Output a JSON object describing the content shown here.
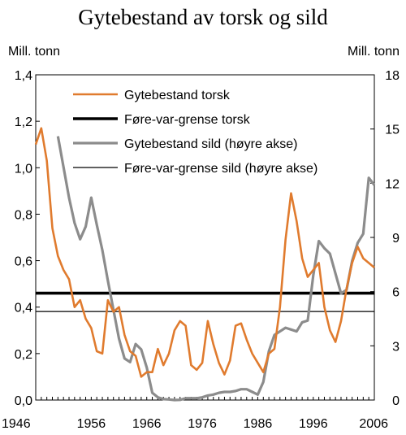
{
  "chart_data": {
    "type": "line",
    "title": "Gytebestand av torsk og sild",
    "ylabel_left": "Mill. tonn",
    "ylabel_right": "Mill. tonn",
    "xlim": [
      1946,
      2007
    ],
    "ylim_left": [
      0,
      1.4
    ],
    "ylim_right": [
      0,
      18
    ],
    "x_ticks": [
      "1946",
      "1956",
      "1966",
      "1976",
      "1986",
      "1996",
      "2006"
    ],
    "y_ticks_left": [
      "0,0",
      "0,2",
      "0,4",
      "0,6",
      "0,8",
      "1,0",
      "1,2",
      "1,4"
    ],
    "y_ticks_right": [
      "0",
      "3",
      "6",
      "9",
      "12",
      "15",
      "18"
    ],
    "grid": false,
    "legend_position": "top-right",
    "colors": {
      "torsk": "#e07b2e",
      "sild": "#8c8c8c",
      "grense_torsk": "#000000",
      "grense_sild": "#000000"
    },
    "series": [
      {
        "name": "Gytebestand torsk",
        "axis": "left",
        "x": [
          1946,
          1947,
          1948,
          1949,
          1950,
          1951,
          1952,
          1953,
          1954,
          1955,
          1956,
          1957,
          1958,
          1959,
          1960,
          1961,
          1962,
          1963,
          1964,
          1965,
          1966,
          1967,
          1968,
          1969,
          1970,
          1971,
          1972,
          1973,
          1974,
          1975,
          1976,
          1977,
          1978,
          1979,
          1980,
          1981,
          1982,
          1983,
          1984,
          1985,
          1986,
          1987,
          1988,
          1989,
          1990,
          1991,
          1992,
          1993,
          1994,
          1995,
          1996,
          1997,
          1998,
          1999,
          2000,
          2001,
          2002,
          2003,
          2004,
          2005,
          2006,
          2007
        ],
        "y": [
          1.1,
          1.17,
          1.03,
          0.74,
          0.62,
          0.56,
          0.52,
          0.4,
          0.43,
          0.35,
          0.31,
          0.21,
          0.2,
          0.43,
          0.38,
          0.4,
          0.28,
          0.21,
          0.19,
          0.1,
          0.12,
          0.12,
          0.22,
          0.15,
          0.2,
          0.3,
          0.34,
          0.32,
          0.15,
          0.13,
          0.16,
          0.34,
          0.24,
          0.16,
          0.11,
          0.17,
          0.32,
          0.33,
          0.26,
          0.2,
          0.16,
          0.12,
          0.2,
          0.22,
          0.4,
          0.69,
          0.89,
          0.77,
          0.61,
          0.53,
          0.56,
          0.59,
          0.4,
          0.3,
          0.25,
          0.34,
          0.48,
          0.59,
          0.66,
          0.61,
          0.59,
          0.57
        ]
      },
      {
        "name": "Føre-var-grense torsk",
        "axis": "left",
        "x": [
          1946,
          2007
        ],
        "y": [
          0.46,
          0.46
        ]
      },
      {
        "name": "Gytebestand sild (høyre akse)",
        "axis": "right",
        "x": [
          1950,
          1951,
          1952,
          1953,
          1954,
          1955,
          1956,
          1957,
          1958,
          1959,
          1960,
          1961,
          1962,
          1963,
          1964,
          1965,
          1966,
          1967,
          1968,
          1969,
          1970,
          1971,
          1972,
          1973,
          1974,
          1975,
          1976,
          1977,
          1978,
          1979,
          1980,
          1981,
          1982,
          1983,
          1984,
          1985,
          1986,
          1987,
          1988,
          1989,
          1990,
          1991,
          1992,
          1993,
          1994,
          1995,
          1996,
          1997,
          1998,
          1999,
          2000,
          2001,
          2002,
          2003,
          2004,
          2005,
          2006,
          2007
        ],
        "y": [
          14.6,
          12.9,
          11.2,
          9.8,
          8.9,
          9.6,
          11.2,
          9.7,
          8.3,
          6.6,
          5,
          3.4,
          2.3,
          2.1,
          3.1,
          2.8,
          1.8,
          0.4,
          0.15,
          0.05,
          0.03,
          0,
          0.01,
          0.1,
          0.1,
          0.1,
          0.15,
          0.25,
          0.3,
          0.4,
          0.45,
          0.45,
          0.5,
          0.6,
          0.6,
          0.45,
          0.3,
          1,
          2.7,
          3.6,
          3.8,
          4,
          3.9,
          3.8,
          4.3,
          4.4,
          6.9,
          8.8,
          8.4,
          8.1,
          7,
          5.9,
          6.1,
          7.7,
          8.7,
          9.2,
          12.3,
          11.9
        ]
      },
      {
        "name": "Føre-var-grense sild (høyre akse)",
        "axis": "right",
        "x": [
          1946,
          2007
        ],
        "y": [
          4.9,
          4.9
        ]
      }
    ]
  }
}
